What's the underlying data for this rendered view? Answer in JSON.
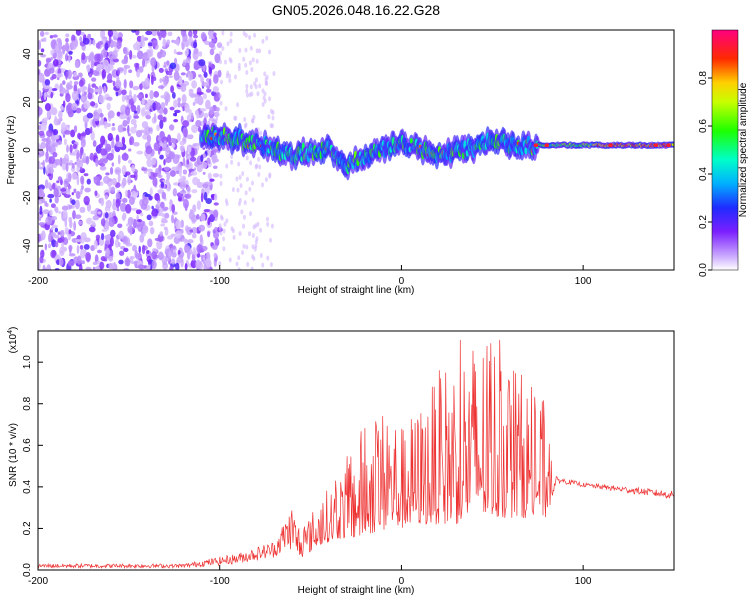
{
  "chart_data": [
    {
      "type": "heatmap",
      "title": "GN05.2026.048.16.22.G28",
      "xlabel": "Height of straight line (km)",
      "ylabel": "Frequency (Hz)",
      "xlim": [
        -200,
        150
      ],
      "ylim": [
        -50,
        50
      ],
      "xticks": [
        -200,
        -100,
        0,
        100
      ],
      "yticks": [
        -40,
        -20,
        0,
        20,
        40
      ],
      "colorbar": {
        "label": "Normalized spectral amplitude",
        "range": [
          0,
          1
        ],
        "ticks": [
          0.0,
          0.2,
          0.4,
          0.6,
          0.8
        ],
        "tick_labels": [
          "0.0",
          "0.2",
          "0.4",
          "0.6",
          "0.8"
        ]
      },
      "ridge": {
        "description_points_km": [
          -100,
          -80,
          -60,
          -40,
          -30,
          -20,
          0,
          20,
          40,
          50,
          60,
          75,
          100,
          150
        ],
        "frequency_hz": [
          6,
          3,
          -2,
          0,
          -6,
          -2,
          3,
          -2,
          1,
          4,
          2,
          2,
          2,
          2
        ]
      }
    },
    {
      "type": "line",
      "xlabel": "Height of straight line (km)",
      "ylabel": "SNR (10 * v/v)",
      "yscale_label": "(x10",
      "yscale_exponent": "4",
      "xlim": [
        -200,
        150
      ],
      "ylim": [
        0,
        1.15
      ],
      "xticks": [
        -200,
        -100,
        0,
        100
      ],
      "yticks": [
        0.0,
        0.2,
        0.4,
        0.6,
        0.8,
        1.0
      ],
      "ytick_labels": [
        "0.0",
        "0.2",
        "0.4",
        "0.6",
        "0.8",
        "1.0"
      ],
      "line_color": "#ee3333",
      "envelope": {
        "x": [
          -200,
          -120,
          -90,
          -70,
          -60,
          -55,
          -45,
          -35,
          -25,
          -15,
          -5,
          0,
          10,
          20,
          30,
          40,
          50,
          60,
          70,
          80,
          85,
          100,
          150
        ],
        "y_max": [
          0.03,
          0.03,
          0.08,
          0.14,
          0.32,
          0.2,
          0.35,
          0.45,
          0.65,
          0.78,
          0.8,
          0.7,
          0.8,
          0.95,
          1.1,
          1.13,
          1.15,
          1.05,
          0.9,
          0.8,
          0.45,
          0.42,
          0.38
        ],
        "y_base": [
          0.01,
          0.01,
          0.03,
          0.06,
          0.1,
          0.06,
          0.12,
          0.15,
          0.15,
          0.18,
          0.2,
          0.2,
          0.22,
          0.22,
          0.22,
          0.25,
          0.25,
          0.25,
          0.25,
          0.25,
          0.42,
          0.4,
          0.34
        ]
      }
    }
  ]
}
